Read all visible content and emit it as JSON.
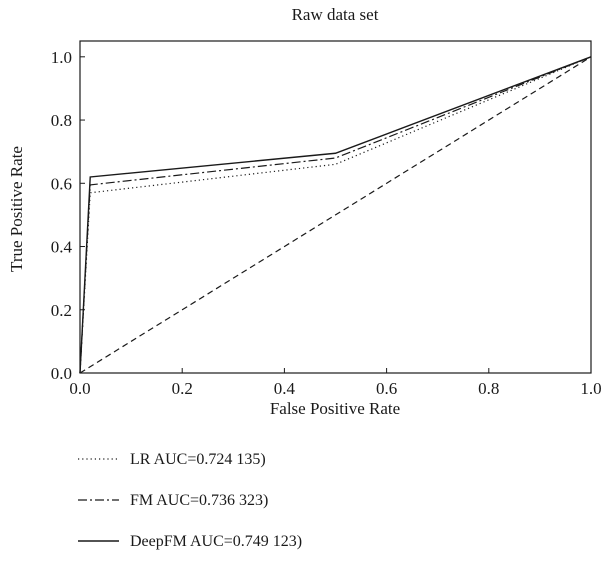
{
  "chart_data": {
    "type": "line",
    "title": "Raw data set",
    "xlabel": "False Positive Rate",
    "ylabel": "True Positive Rate",
    "xlim": [
      0.0,
      1.0
    ],
    "ylim": [
      0.0,
      1.05
    ],
    "x_ticks": [
      "0.0",
      "0.2",
      "0.4",
      "0.6",
      "0.8",
      "1.0"
    ],
    "y_ticks": [
      "0.0",
      "0.2",
      "0.4",
      "0.6",
      "0.8",
      "1.0"
    ],
    "grid": false,
    "legend_position": "below",
    "series": [
      {
        "name": "LR AUC=0.724 135)",
        "style": "dotted",
        "color": "#1a1a1a",
        "points": [
          [
            0.0,
            0.0
          ],
          [
            0.02,
            0.57
          ],
          [
            0.5,
            0.66
          ],
          [
            1.0,
            1.0
          ]
        ]
      },
      {
        "name": "FM AUC=0.736 323)",
        "style": "dashdot",
        "color": "#1a1a1a",
        "points": [
          [
            0.0,
            0.0
          ],
          [
            0.02,
            0.595
          ],
          [
            0.5,
            0.68
          ],
          [
            1.0,
            1.0
          ]
        ]
      },
      {
        "name": "DeepFM AUC=0.749 123)",
        "style": "solid",
        "color": "#1a1a1a",
        "points": [
          [
            0.0,
            0.0
          ],
          [
            0.02,
            0.62
          ],
          [
            0.5,
            0.695
          ],
          [
            1.0,
            1.0
          ]
        ]
      },
      {
        "style": "dashed",
        "color": "#1a1a1a",
        "points": [
          [
            0.0,
            0.0
          ],
          [
            1.0,
            1.0
          ]
        ]
      }
    ]
  }
}
